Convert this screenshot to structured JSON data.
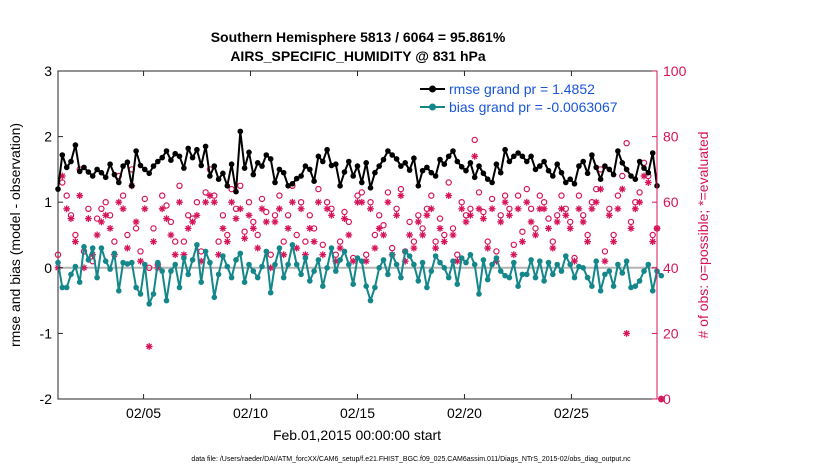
{
  "title_line1": "Southern Hemisphere 5813 / 6064 = 95.861%",
  "title_line2": "AIRS_SPECIFIC_HUMIDITY @ 831 hPa",
  "footer": "data file: /Users/raeder/DAI/ATM_forcXX/CAM6_setup/f.e21.FHIST_BGC.f09_025.CAM6assim.011/Diags_NTrS_2015-02/obs_diag_output.nc",
  "colors": {
    "rmse": "#000000",
    "bias": "#14878a",
    "obs": "#d6145a",
    "zero_line": "#b4b4b4"
  },
  "chart_data": {
    "type": "line",
    "xlabel": "Feb.01,2015 00:00:00 start",
    "ylabel_left": "rmse and bias (model - observation)",
    "ylabel_right": "# of obs: o=possible; *=evaluated",
    "xlim": [
      1,
      29
    ],
    "ylim_left": [
      -2,
      3
    ],
    "ylim_right": [
      0,
      100
    ],
    "x_ticks": [
      5,
      10,
      15,
      20,
      25
    ],
    "x_tick_labels": [
      "02/05",
      "02/10",
      "02/15",
      "02/20",
      "02/25"
    ],
    "y_ticks_left": [
      -2,
      -1,
      0,
      1,
      2,
      3
    ],
    "y_ticks_left_labels": [
      "-2",
      "-1",
      "0",
      "1",
      "2",
      "3"
    ],
    "y_ticks_right": [
      0,
      20,
      40,
      60,
      80,
      100
    ],
    "y_ticks_right_labels": [
      "0",
      "20",
      "40",
      "60",
      "80",
      "100"
    ],
    "legend": [
      "rmse grand pr = 1.4852",
      "bias grand pr = -0.0063067"
    ],
    "legend_position": "top-right",
    "series": [
      {
        "name": "rmse",
        "axis": "left",
        "style": "line-marker",
        "values": [
          1.2,
          1.72,
          1.53,
          1.62,
          1.87,
          1.47,
          1.53,
          1.46,
          1.4,
          1.5,
          1.45,
          1.38,
          1.58,
          1.42,
          1.3,
          1.55,
          1.61,
          1.25,
          1.78,
          1.56,
          1.5,
          1.44,
          1.55,
          1.62,
          1.68,
          1.78,
          1.64,
          1.74,
          1.7,
          1.52,
          1.82,
          1.68,
          1.8,
          1.56,
          1.85,
          1.4,
          1.55,
          1.35,
          1.44,
          1.25,
          1.58,
          1.16,
          2.08,
          1.52,
          1.76,
          1.42,
          1.6,
          1.55,
          1.72,
          1.66,
          1.3,
          1.5,
          1.45,
          1.25,
          1.28,
          1.36,
          1.4,
          1.55,
          1.5,
          1.32,
          1.7,
          1.62,
          1.8,
          1.56,
          1.58,
          1.25,
          1.46,
          1.62,
          1.4,
          1.55,
          1.3,
          1.6,
          1.22,
          1.45,
          1.55,
          1.65,
          1.78,
          1.72,
          1.66,
          1.55,
          1.6,
          1.49,
          1.67,
          1.25,
          1.48,
          1.53,
          1.45,
          1.4,
          1.65,
          1.58,
          1.7,
          1.78,
          1.62,
          1.54,
          1.48,
          1.6,
          1.38,
          1.55,
          1.44,
          1.35,
          1.3,
          1.58,
          1.45,
          1.8,
          1.62,
          1.7,
          1.75,
          1.7,
          1.62,
          1.7,
          1.5,
          1.55,
          1.62,
          1.48,
          1.4,
          1.58,
          1.45,
          1.3,
          1.35,
          1.28,
          1.55,
          1.62,
          1.44,
          1.72,
          1.53,
          1.35,
          1.55,
          1.5,
          1.42,
          1.78,
          1.6,
          1.5,
          1.4,
          1.35,
          1.62,
          1.52,
          1.45,
          1.75,
          1.25
        ]
      },
      {
        "name": "bias",
        "axis": "left",
        "style": "line-marker",
        "values": [
          0.08,
          -0.3,
          -0.3,
          -0.1,
          0.02,
          -0.22,
          0.32,
          0.12,
          0.3,
          -0.15,
          0.3,
          0.1,
          -0.02,
          0.22,
          -0.35,
          0.08,
          0.06,
          0.08,
          -0.3,
          -0.4,
          0.05,
          -0.55,
          -0.4,
          0.08,
          -0.05,
          -0.5,
          -0.05,
          0.05,
          -0.3,
          0.15,
          -0.1,
          0.12,
          0.35,
          -0.22,
          0.25,
          0.08,
          -0.45,
          -0.1,
          0.18,
          0.02,
          -0.15,
          0.12,
          0.22,
          -0.22,
          0.05,
          -0.05,
          -0.15,
          0.02,
          0.25,
          -0.38,
          0.05,
          0.3,
          -0.15,
          0.05,
          0.35,
          0.05,
          -0.1,
          0.15,
          -0.2,
          -0.05,
          0.12,
          -0.28,
          0.0,
          0.3,
          -0.05,
          0.12,
          0.25,
          0.05,
          -0.25,
          0.15,
          0.1,
          -0.28,
          -0.5,
          -0.3,
          0.0,
          0.12,
          -0.1,
          0.2,
          0.05,
          -0.15,
          0.25,
          0.18,
          0.05,
          -0.2,
          0.08,
          -0.3,
          -0.05,
          0.18,
          0.08,
          0.0,
          -0.15,
          0.1,
          -0.25,
          0.15,
          0.08,
          0.2,
          0.05,
          -0.4,
          0.12,
          -0.18,
          0.05,
          0.15,
          -0.05,
          -0.12,
          -0.15,
          0.08,
          -0.28,
          -0.1,
          -0.1,
          0.12,
          -0.15,
          0.1,
          -0.2,
          0.08,
          -0.1,
          0.05,
          -0.05,
          0.18,
          0.05,
          -0.15,
          0.02,
          0.0,
          -0.15,
          -0.28,
          0.1,
          -0.35,
          -0.1,
          -0.05,
          -0.28,
          0.05,
          -0.08,
          0.1,
          -0.3,
          -0.28,
          -0.2,
          -0.05,
          0.05,
          -0.35,
          -0.05,
          -0.12
        ]
      },
      {
        "name": "possible",
        "axis": "right",
        "style": "circle",
        "values": [
          44,
          66,
          62,
          56,
          50,
          70,
          45,
          58,
          42,
          55,
          58,
          60,
          56,
          48,
          68,
          62,
          50,
          70,
          52,
          45,
          61,
          40,
          52,
          41,
          62,
          59,
          54,
          48,
          65,
          48,
          56,
          55,
          60,
          45,
          63,
          70,
          62,
          48,
          56,
          50,
          64,
          58,
          65,
          51,
          60,
          54,
          50,
          61,
          57,
          44,
          56,
          62,
          48,
          56,
          65,
          50,
          60,
          48,
          56,
          52,
          64,
          47,
          60,
          58,
          44,
          48,
          57,
          54,
          43,
          62,
          63,
          44,
          60,
          50,
          56,
          53,
          63,
          46,
          58,
          64,
          45,
          54,
          48,
          56,
          52,
          58,
          62,
          48,
          55,
          50,
          66,
          52,
          44,
          60,
          56,
          58,
          79,
          63,
          57,
          48,
          61,
          45,
          56,
          62,
          58,
          47,
          62,
          51,
          64,
          58,
          52,
          62,
          60,
          55,
          48,
          56,
          62,
          58,
          54,
          43,
          62,
          56,
          50,
          60,
          64,
          70,
          45,
          58,
          50,
          62,
          68,
          78,
          54,
          60,
          63,
          72,
          68,
          50,
          52,
          0
        ]
      },
      {
        "name": "evaluated",
        "axis": "right",
        "style": "asterisk",
        "values": [
          40,
          68,
          58,
          55,
          48,
          62,
          40,
          55,
          44,
          50,
          54,
          56,
          52,
          44,
          60,
          58,
          46,
          65,
          54,
          42,
          58,
          16,
          48,
          40,
          58,
          55,
          50,
          44,
          60,
          44,
          52,
          54,
          56,
          42,
          60,
          62,
          60,
          44,
          52,
          48,
          60,
          55,
          58,
          49,
          56,
          52,
          46,
          58,
          54,
          40,
          54,
          58,
          44,
          52,
          60,
          46,
          58,
          44,
          52,
          48,
          60,
          44,
          58,
          56,
          42,
          46,
          55,
          50,
          42,
          60,
          60,
          42,
          58,
          46,
          52,
          50,
          60,
          44,
          56,
          62,
          42,
          50,
          46,
          54,
          50,
          56,
          58,
          46,
          52,
          48,
          62,
          50,
          42,
          58,
          54,
          56,
          74,
          58,
          55,
          46,
          58,
          42,
          54,
          60,
          56,
          44,
          58,
          48,
          60,
          54,
          50,
          58,
          58,
          52,
          46,
          54,
          58,
          56,
          52,
          42,
          58,
          54,
          48,
          58,
          60,
          64,
          42,
          56,
          48,
          58,
          64,
          20,
          52,
          58,
          60,
          68,
          66,
          48,
          52,
          0
        ]
      }
    ]
  }
}
